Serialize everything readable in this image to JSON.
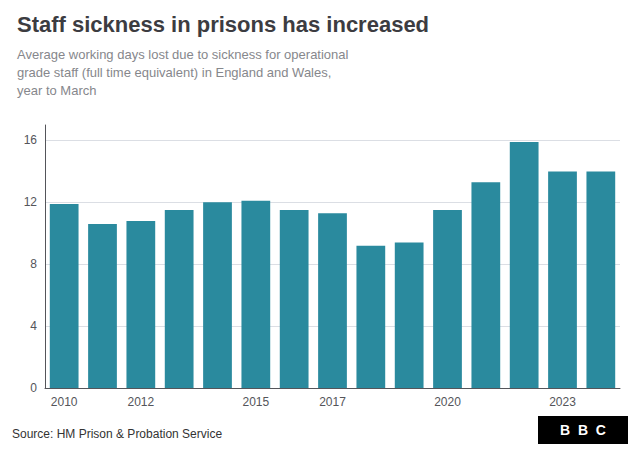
{
  "chart_data": {
    "type": "bar",
    "title": "Staff sickness in prisons has increased",
    "subtitle": "Average working days lost due to sickness for operational\ngrade staff (full time equivalent) in England and Wales,\nyear to March",
    "annotations": [
      "Source: HM Prison & Probation Service",
      "B  B  C"
    ],
    "categories": [
      "2010",
      null,
      "2012",
      null,
      null,
      "2015",
      null,
      "2017",
      null,
      null,
      "2020",
      null,
      null,
      "2023",
      null
    ],
    "values": [
      11.9,
      10.6,
      10.8,
      11.5,
      12.0,
      12.1,
      11.5,
      11.3,
      9.2,
      9.4,
      11.5,
      13.3,
      15.9,
      14.0,
      14.0
    ],
    "color": "#2a8a9e",
    "ylim": [
      0,
      17
    ],
    "yticks": [
      0,
      4,
      8,
      12,
      16
    ],
    "grid": true
  }
}
